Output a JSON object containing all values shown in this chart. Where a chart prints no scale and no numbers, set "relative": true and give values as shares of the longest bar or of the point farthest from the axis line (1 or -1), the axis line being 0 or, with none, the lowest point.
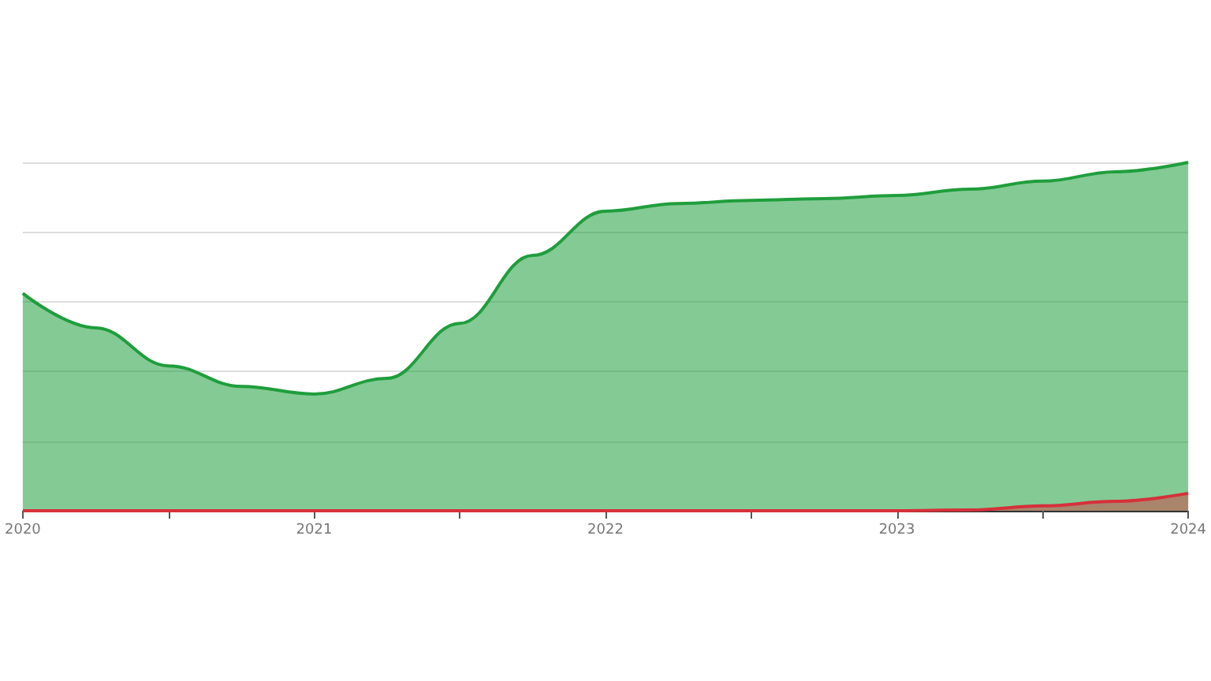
{
  "chart_data": {
    "type": "area",
    "relative": true,
    "grid": "y",
    "xlim": [
      2020,
      2024
    ],
    "xticks": [
      2020,
      {
        "value": 2020.5,
        "label": null
      },
      2021,
      {
        "value": 2021.5,
        "label": null
      },
      2022,
      {
        "value": 2022.5,
        "label": null
      },
      2023,
      {
        "value": 2023.5,
        "label": null
      },
      2024
    ],
    "x": [
      2020,
      2020.25,
      2020.5,
      2020.75,
      2021,
      2021.25,
      2021.5,
      2021.75,
      2022,
      2022.25,
      2022.5,
      2022.75,
      2023,
      2023.25,
      2023.5,
      2023.75,
      2024
    ],
    "series": [
      {
        "color": "#1f9e3c",
        "values": [
          0.624,
          0.525,
          0.416,
          0.357,
          0.335,
          0.38,
          0.538,
          0.733,
          0.86,
          0.882,
          0.891,
          0.896,
          0.905,
          0.923,
          0.946,
          0.973,
          1
        ]
      },
      {
        "color": "#d6303a",
        "values": [
          0,
          0,
          0,
          0,
          0,
          0,
          0,
          0,
          0,
          0,
          0,
          0,
          0,
          0.002,
          0.014,
          0.027,
          0.05
        ]
      }
    ]
  }
}
